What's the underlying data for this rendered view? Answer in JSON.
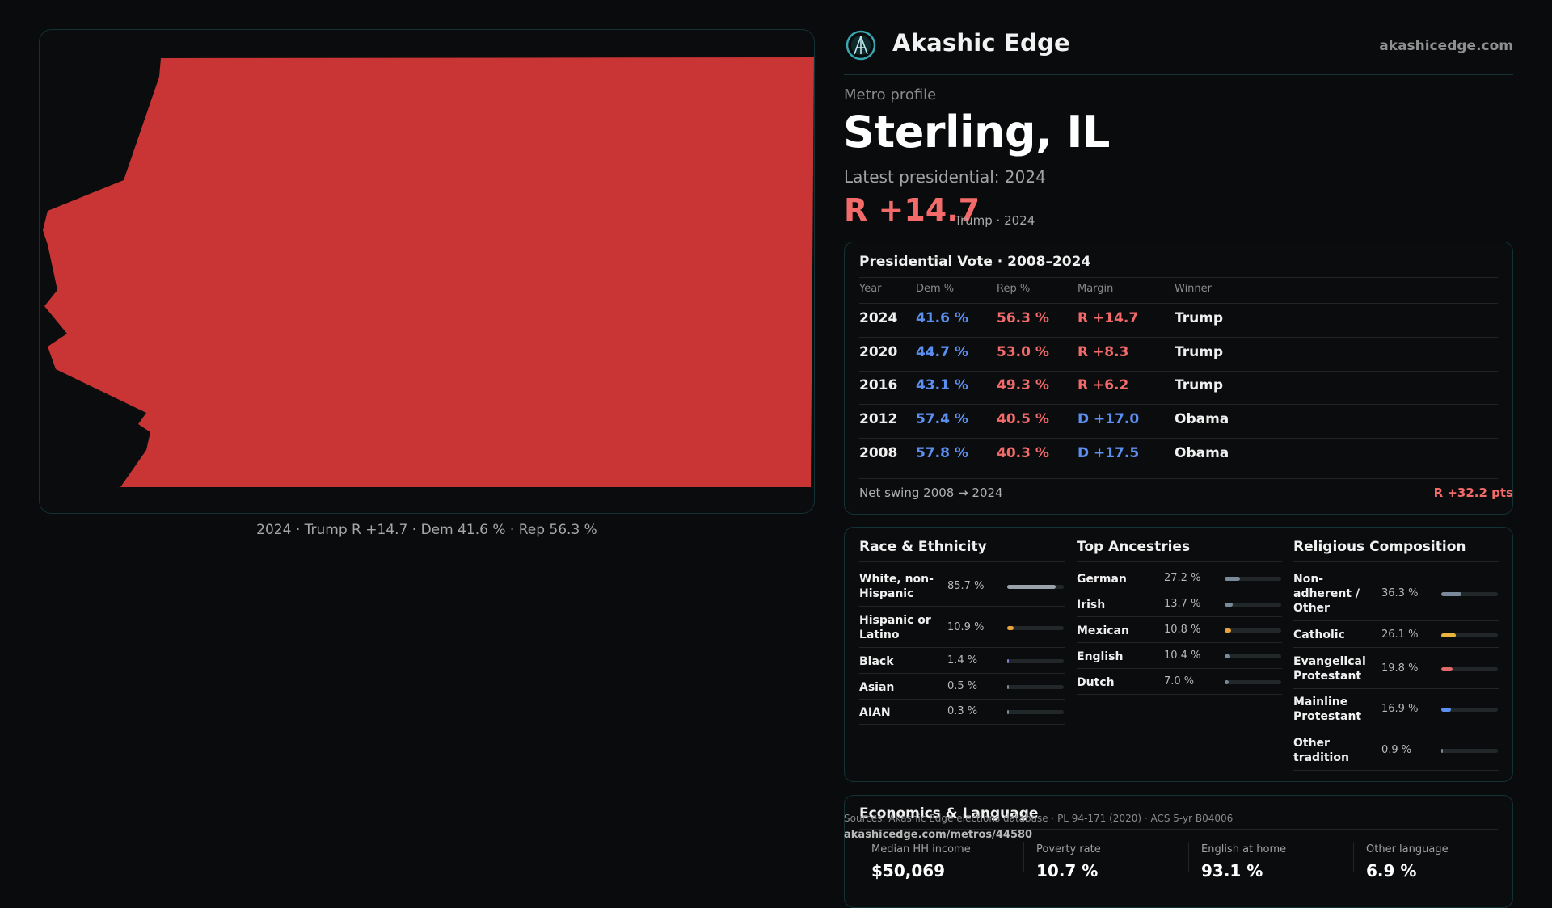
{
  "brand": {
    "name": "Akashic Edge",
    "domain": "akashicedge.com"
  },
  "profile": {
    "eyebrow": "Metro profile",
    "metro": "Sterling, IL",
    "latest_label": "Latest presidential: 2024",
    "margin": "R +14.7",
    "margin_sub": "Trump · 2024"
  },
  "map": {
    "caption": "2024 · Trump R +14.7 · Dem 41.6 % · Rep 56.3 %",
    "fill_color": "#c93434"
  },
  "vote_table": {
    "title": "Presidential Vote · 2008–2024",
    "headers": [
      "Year",
      "Dem %",
      "Rep %",
      "Margin",
      "Winner"
    ],
    "rows": [
      {
        "year": "2024",
        "dem": "41.6 %",
        "rep": "56.3 %",
        "margin": "R +14.7",
        "winner": "Trump"
      },
      {
        "year": "2020",
        "dem": "44.7 %",
        "rep": "53.0 %",
        "margin": "R +8.3",
        "winner": "Trump"
      },
      {
        "year": "2016",
        "dem": "43.1 %",
        "rep": "49.3 %",
        "margin": "R +6.2",
        "winner": "Trump"
      },
      {
        "year": "2012",
        "dem": "57.4 %",
        "rep": "40.5 %",
        "margin": "D +17.0",
        "winner": "Obama"
      },
      {
        "year": "2008",
        "dem": "57.8 %",
        "rep": "40.3 %",
        "margin": "D +17.5",
        "winner": "Obama"
      }
    ],
    "swing_label": "Net swing 2008 → 2024",
    "swing_value": "R +32.2 pts"
  },
  "race": {
    "title": "Race & Ethnicity",
    "items": [
      {
        "label": "White, non-Hispanic",
        "value": "85.7 %",
        "pct": 85.7,
        "color": "#9aa3ab"
      },
      {
        "label": "Hispanic or Latino",
        "value": "10.9 %",
        "pct": 10.9,
        "color": "#e8a43c"
      },
      {
        "label": "Black",
        "value": "1.4 %",
        "pct": 1.4,
        "color": "#8a7ad8"
      },
      {
        "label": "Asian",
        "value": "0.5 %",
        "pct": 0.5,
        "color": "#7a8a98"
      },
      {
        "label": "AIAN",
        "value": "0.3 %",
        "pct": 0.3,
        "color": "#7a8a98"
      }
    ]
  },
  "ancestry": {
    "title": "Top Ancestries",
    "items": [
      {
        "label": "German",
        "value": "27.2 %",
        "pct": 27.2,
        "color": "#7a8a98"
      },
      {
        "label": "Irish",
        "value": "13.7 %",
        "pct": 13.7,
        "color": "#7a8a98"
      },
      {
        "label": "Mexican",
        "value": "10.8 %",
        "pct": 10.8,
        "color": "#e8a43c"
      },
      {
        "label": "English",
        "value": "10.4 %",
        "pct": 10.4,
        "color": "#7a8a98"
      },
      {
        "label": "Dutch",
        "value": "7.0 %",
        "pct": 7.0,
        "color": "#7a8a98"
      }
    ]
  },
  "religion": {
    "title": "Religious Composition",
    "items": [
      {
        "label": "Non-adherent / Other",
        "value": "36.3 %",
        "pct": 36.3,
        "color": "#7a8a98"
      },
      {
        "label": "Catholic",
        "value": "26.1 %",
        "pct": 26.1,
        "color": "#e8b43c"
      },
      {
        "label": "Evangelical Protestant",
        "value": "19.8 %",
        "pct": 19.8,
        "color": "#e06a6a"
      },
      {
        "label": "Mainline Protestant",
        "value": "16.9 %",
        "pct": 16.9,
        "color": "#5b8ff0"
      },
      {
        "label": "Other tradition",
        "value": "0.9 %",
        "pct": 0.9,
        "color": "#7a8a98"
      }
    ]
  },
  "economics": {
    "title": "Economics & Language",
    "items": [
      {
        "label": "Median HH income",
        "value": "$50,069"
      },
      {
        "label": "Poverty rate",
        "value": "10.7 %"
      },
      {
        "label": "English at home",
        "value": "93.1 %"
      },
      {
        "label": "Other language",
        "value": "6.9 %"
      }
    ]
  },
  "footer": {
    "sources": "Sources: Akashic Edge elections database · PL 94-171 (2020) · ACS 5-yr B04006",
    "link": "akashicedge.com/metros/44580"
  }
}
